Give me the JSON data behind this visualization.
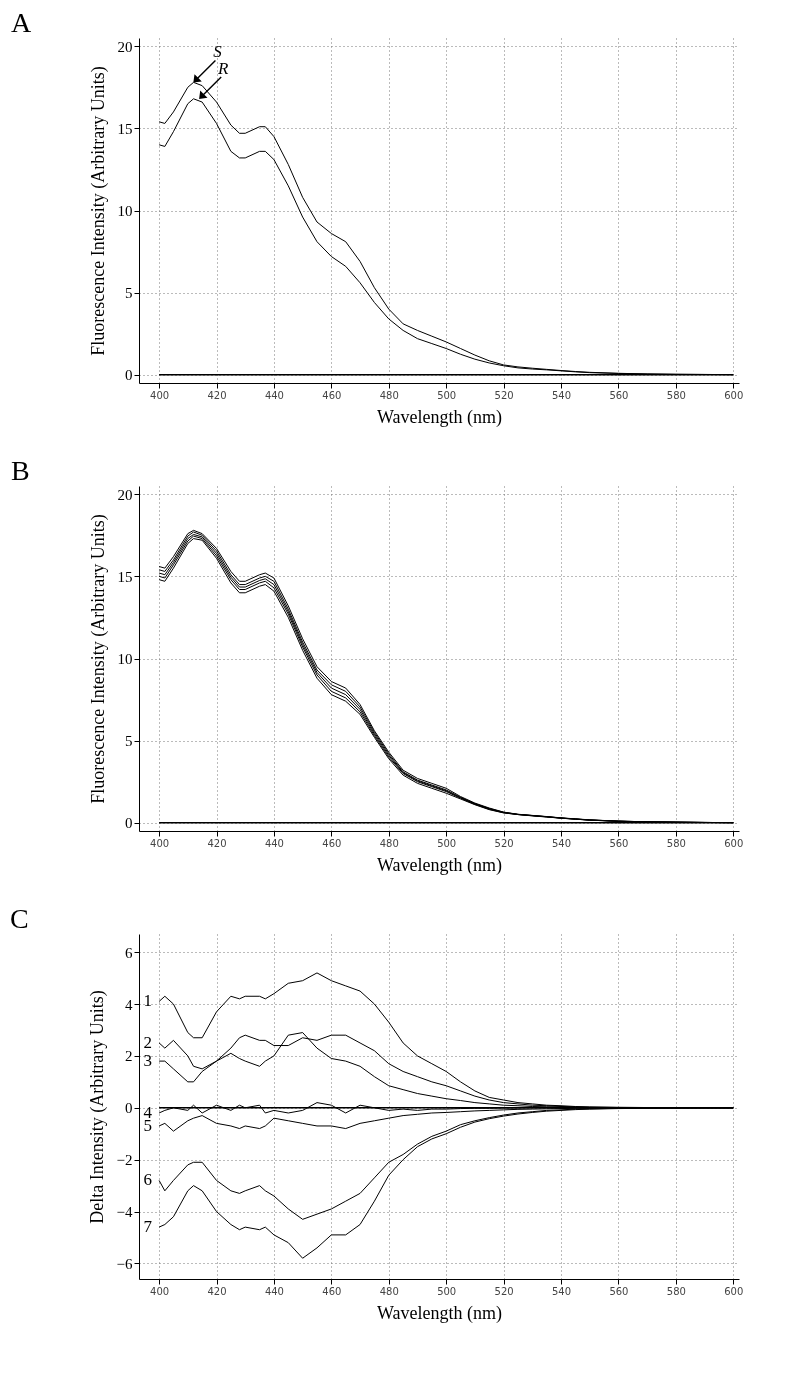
{
  "chart_data": [
    {
      "type": "line",
      "title": "A",
      "xlabel": "Wavelength (nm)",
      "ylabel": "Fluorescence Intensity (Arbitrary Units)",
      "xlim": [
        393,
        602
      ],
      "ylim": [
        -0.5,
        20.5
      ],
      "xticks": [
        400,
        420,
        440,
        460,
        480,
        500,
        520,
        540,
        560,
        580,
        600
      ],
      "yticks": [
        0,
        5,
        10,
        15,
        20
      ],
      "grid": true,
      "x": [
        400,
        402,
        405,
        410,
        412,
        415,
        420,
        425,
        428,
        430,
        435,
        437,
        440,
        445,
        450,
        455,
        460,
        465,
        470,
        475,
        480,
        485,
        490,
        495,
        500,
        505,
        510,
        515,
        520,
        525,
        530,
        535,
        540,
        545,
        550,
        560,
        570,
        580,
        590,
        600
      ],
      "series": [
        {
          "color": "#000000",
          "values": [
            15.4,
            15.3,
            16.0,
            17.5,
            17.8,
            17.6,
            16.6,
            15.2,
            14.7,
            14.7,
            15.1,
            15.1,
            14.5,
            12.8,
            10.8,
            9.3,
            8.6,
            8.1,
            6.9,
            5.3,
            4.0,
            3.1,
            2.7,
            2.35,
            2.0,
            1.6,
            1.2,
            0.85,
            0.6,
            0.48,
            0.4,
            0.33,
            0.26,
            0.2,
            0.15,
            0.09,
            0.05,
            0.03,
            0.02,
            0.01
          ]
        },
        {
          "color": "#000000",
          "values": [
            14.0,
            13.9,
            14.8,
            16.5,
            16.8,
            16.6,
            15.3,
            13.6,
            13.2,
            13.2,
            13.6,
            13.6,
            13.1,
            11.5,
            9.6,
            8.1,
            7.2,
            6.6,
            5.6,
            4.4,
            3.4,
            2.7,
            2.2,
            1.9,
            1.6,
            1.25,
            0.95,
            0.72,
            0.55,
            0.42,
            0.35,
            0.3,
            0.24,
            0.18,
            0.13,
            0.08,
            0.05,
            0.03,
            0.02,
            0.01
          ]
        }
      ],
      "ref_lines": [
        {
          "axis": "y",
          "value": 0,
          "color": "#000000"
        }
      ],
      "annotations": [
        {
          "text": "S",
          "x": 412,
          "y": 17.8
        },
        {
          "text": "R",
          "x": 414,
          "y": 16.8
        }
      ]
    },
    {
      "type": "line",
      "title": "B",
      "xlabel": "Wavelength (nm)",
      "ylabel": "Fluorescence Intensity (Arbitrary Units)",
      "xlim": [
        393,
        602
      ],
      "ylim": [
        -0.5,
        20.5
      ],
      "xticks": [
        400,
        420,
        440,
        460,
        480,
        500,
        520,
        540,
        560,
        580,
        600
      ],
      "yticks": [
        0,
        5,
        10,
        15,
        20
      ],
      "grid": true,
      "x": [
        400,
        402,
        405,
        410,
        412,
        415,
        420,
        425,
        428,
        430,
        435,
        437,
        440,
        445,
        450,
        455,
        460,
        465,
        470,
        475,
        480,
        485,
        490,
        495,
        500,
        505,
        510,
        515,
        520,
        525,
        530,
        535,
        540,
        545,
        550,
        560,
        570,
        580,
        590,
        600
      ],
      "series": [
        {
          "color": "#000000",
          "values": [
            15.6,
            15.5,
            16.2,
            17.6,
            17.8,
            17.6,
            16.7,
            15.3,
            14.7,
            14.7,
            15.1,
            15.2,
            14.9,
            13.2,
            11.2,
            9.5,
            8.6,
            8.2,
            7.2,
            5.6,
            4.3,
            3.2,
            2.7,
            2.4,
            2.1,
            1.6,
            1.2,
            0.9,
            0.65,
            0.52,
            0.45,
            0.38,
            0.3,
            0.24,
            0.18,
            0.1,
            0.06,
            0.04,
            0.02,
            0.01
          ]
        },
        {
          "color": "#000000",
          "values": [
            15.4,
            15.3,
            16.0,
            17.45,
            17.7,
            17.5,
            16.55,
            15.1,
            14.5,
            14.5,
            14.9,
            15.0,
            14.7,
            13.0,
            11.0,
            9.3,
            8.4,
            8.0,
            7.05,
            5.5,
            4.2,
            3.1,
            2.6,
            2.3,
            2.0,
            1.55,
            1.17,
            0.87,
            0.64,
            0.51,
            0.44,
            0.37,
            0.29,
            0.23,
            0.17,
            0.1,
            0.06,
            0.04,
            0.02,
            0.01
          ]
        },
        {
          "color": "#000000",
          "values": [
            15.2,
            15.1,
            15.85,
            17.3,
            17.55,
            17.4,
            16.4,
            14.95,
            14.35,
            14.35,
            14.75,
            14.85,
            14.5,
            12.85,
            10.85,
            9.15,
            8.2,
            7.8,
            6.9,
            5.4,
            4.1,
            3.05,
            2.55,
            2.25,
            1.95,
            1.53,
            1.15,
            0.85,
            0.63,
            0.51,
            0.44,
            0.37,
            0.29,
            0.23,
            0.17,
            0.1,
            0.06,
            0.04,
            0.02,
            0.01
          ]
        },
        {
          "color": "#000000",
          "values": [
            15.0,
            14.9,
            15.7,
            17.15,
            17.45,
            17.3,
            16.25,
            14.8,
            14.2,
            14.2,
            14.6,
            14.7,
            14.3,
            12.7,
            10.7,
            9.0,
            8.0,
            7.6,
            6.75,
            5.3,
            4.0,
            3.0,
            2.5,
            2.2,
            1.9,
            1.5,
            1.12,
            0.82,
            0.61,
            0.5,
            0.43,
            0.36,
            0.28,
            0.22,
            0.16,
            0.09,
            0.05,
            0.03,
            0.02,
            0.01
          ]
        },
        {
          "color": "#000000",
          "values": [
            14.8,
            14.7,
            15.5,
            17.0,
            17.3,
            17.2,
            16.1,
            14.6,
            14.0,
            14.0,
            14.4,
            14.5,
            14.1,
            12.5,
            10.5,
            8.8,
            7.8,
            7.4,
            6.6,
            5.2,
            3.9,
            2.9,
            2.4,
            2.1,
            1.8,
            1.45,
            1.1,
            0.8,
            0.6,
            0.5,
            0.42,
            0.35,
            0.28,
            0.22,
            0.16,
            0.09,
            0.05,
            0.03,
            0.02,
            0.01
          ]
        }
      ],
      "ref_lines": [
        {
          "axis": "y",
          "value": 0,
          "color": "#000000"
        }
      ]
    },
    {
      "type": "line",
      "title": "C",
      "xlabel": "Wavelength (nm)",
      "ylabel": "Delta Intensity (Arbitrary Units)",
      "xlim": [
        393,
        602
      ],
      "ylim": [
        -6.6,
        6.7
      ],
      "xticks": [
        400,
        420,
        440,
        460,
        480,
        500,
        520,
        540,
        560,
        580,
        600
      ],
      "yticks": [
        -6,
        -4,
        -2,
        0,
        2,
        4,
        6
      ],
      "grid": true,
      "x": [
        400,
        402,
        405,
        410,
        412,
        415,
        420,
        425,
        428,
        430,
        435,
        437,
        440,
        445,
        450,
        455,
        460,
        465,
        470,
        475,
        480,
        485,
        490,
        495,
        500,
        505,
        510,
        515,
        520,
        525,
        530,
        535,
        540,
        545,
        550,
        560,
        570,
        580,
        590,
        600
      ],
      "series": [
        {
          "name": "1",
          "color": "#000000",
          "values": [
            4.1,
            4.3,
            4.0,
            2.9,
            2.7,
            2.7,
            3.7,
            4.3,
            4.2,
            4.3,
            4.3,
            4.2,
            4.4,
            4.8,
            4.9,
            5.2,
            4.9,
            4.7,
            4.5,
            4.0,
            3.3,
            2.5,
            2.0,
            1.7,
            1.4,
            1.0,
            0.65,
            0.4,
            0.3,
            0.2,
            0.15,
            0.1,
            0.08,
            0.05,
            0.03,
            0.02,
            0.01,
            0,
            0,
            0
          ]
        },
        {
          "name": "2",
          "color": "#000000",
          "values": [
            2.5,
            2.3,
            2.6,
            2.0,
            1.6,
            1.5,
            1.8,
            2.3,
            2.7,
            2.8,
            2.6,
            2.6,
            2.4,
            2.4,
            2.7,
            2.6,
            2.8,
            2.8,
            2.5,
            2.2,
            1.7,
            1.4,
            1.2,
            1.0,
            0.85,
            0.65,
            0.45,
            0.3,
            0.2,
            0.15,
            0.1,
            0.08,
            0.05,
            0.04,
            0.03,
            0.01,
            0,
            0,
            0,
            0
          ]
        },
        {
          "name": "3",
          "color": "#000000",
          "values": [
            1.8,
            1.8,
            1.5,
            1.0,
            1.0,
            1.4,
            1.8,
            2.1,
            1.9,
            1.8,
            1.6,
            1.8,
            2.0,
            2.8,
            2.9,
            2.3,
            1.9,
            1.8,
            1.6,
            1.2,
            0.85,
            0.7,
            0.55,
            0.45,
            0.35,
            0.28,
            0.2,
            0.15,
            0.1,
            0.08,
            0.05,
            0.04,
            0.03,
            0.02,
            0.01,
            0.01,
            0,
            0,
            0,
            0
          ]
        },
        {
          "name": "4",
          "color": "#000000",
          "values": [
            -0.2,
            -0.1,
            0,
            -0.1,
            0.1,
            -0.2,
            0.1,
            -0.1,
            0.1,
            0,
            0.1,
            -0.2,
            -0.1,
            -0.2,
            -0.1,
            0.2,
            0.1,
            -0.2,
            0.1,
            0,
            -0.1,
            -0.05,
            -0.1,
            -0.05,
            -0.05,
            -0.03,
            -0.02,
            -0.02,
            -0.01,
            -0.01,
            0,
            0,
            0,
            0,
            0,
            0,
            0,
            0,
            0,
            0
          ]
        },
        {
          "name": "5",
          "color": "#000000",
          "values": [
            -0.7,
            -0.6,
            -0.9,
            -0.5,
            -0.4,
            -0.3,
            -0.6,
            -0.7,
            -0.8,
            -0.7,
            -0.8,
            -0.7,
            -0.4,
            -0.5,
            -0.6,
            -0.7,
            -0.7,
            -0.8,
            -0.6,
            -0.5,
            -0.4,
            -0.3,
            -0.25,
            -0.2,
            -0.18,
            -0.15,
            -0.12,
            -0.1,
            -0.08,
            -0.06,
            -0.05,
            -0.04,
            -0.03,
            -0.02,
            -0.02,
            -0.01,
            0,
            0,
            0,
            0
          ]
        },
        {
          "name": "6",
          "color": "#000000",
          "values": [
            -2.8,
            -3.2,
            -2.8,
            -2.2,
            -2.1,
            -2.1,
            -2.8,
            -3.2,
            -3.3,
            -3.2,
            -3.0,
            -3.2,
            -3.4,
            -3.9,
            -4.3,
            -4.1,
            -3.9,
            -3.6,
            -3.3,
            -2.7,
            -2.1,
            -1.8,
            -1.4,
            -1.1,
            -0.9,
            -0.65,
            -0.5,
            -0.38,
            -0.28,
            -0.2,
            -0.15,
            -0.1,
            -0.08,
            -0.05,
            -0.04,
            -0.02,
            -0.01,
            0,
            0,
            0
          ]
        },
        {
          "name": "7",
          "color": "#000000",
          "values": [
            -4.6,
            -4.5,
            -4.2,
            -3.2,
            -3.0,
            -3.2,
            -4.0,
            -4.5,
            -4.7,
            -4.6,
            -4.7,
            -4.6,
            -4.9,
            -5.2,
            -5.8,
            -5.4,
            -4.9,
            -4.9,
            -4.5,
            -3.6,
            -2.6,
            -2.0,
            -1.5,
            -1.2,
            -1.0,
            -0.75,
            -0.55,
            -0.42,
            -0.32,
            -0.24,
            -0.18,
            -0.13,
            -0.1,
            -0.07,
            -0.05,
            -0.03,
            -0.02,
            -0.01,
            0,
            0
          ]
        }
      ],
      "ref_lines": [
        {
          "axis": "y",
          "value": 0,
          "color": "#000000"
        }
      ]
    }
  ]
}
